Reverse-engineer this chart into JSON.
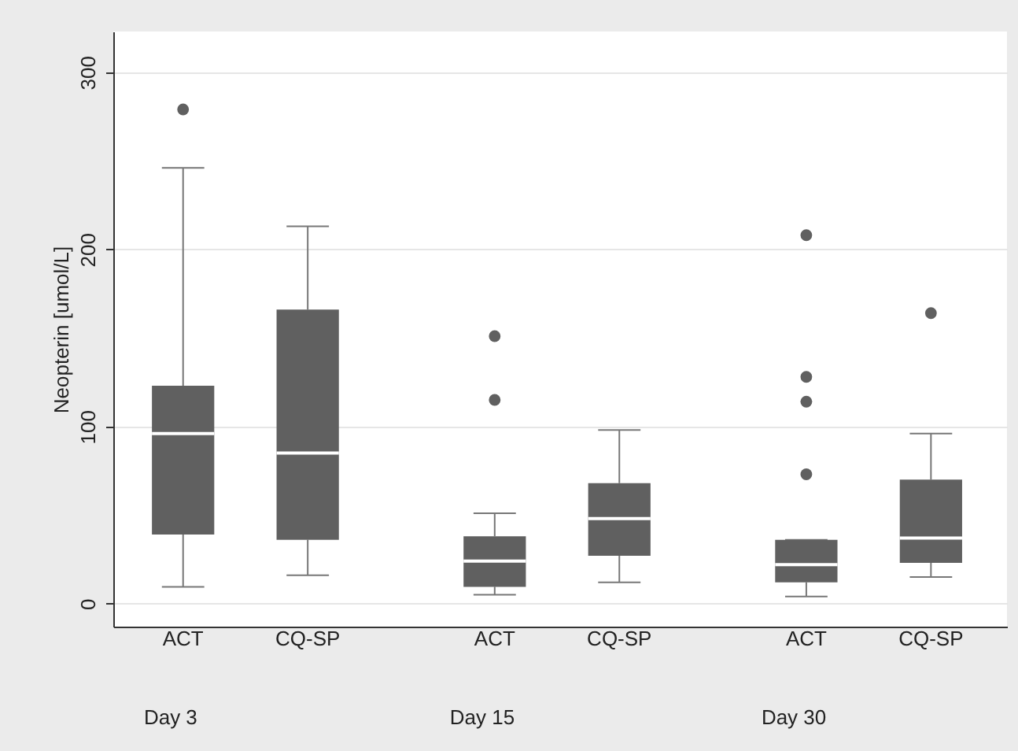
{
  "chart_data": {
    "type": "box",
    "ylabel": "Neopterin [umol/L]",
    "categories": [
      "ACT",
      "CQ-SP",
      "ACT",
      "CQ-SP",
      "ACT",
      "CQ-SP"
    ],
    "annotations": [
      "Day 3",
      "Day 15",
      "Day 30"
    ],
    "series": [
      {
        "color": "#606060",
        "boxes": [
          {
            "low": 9.5,
            "q1": 39,
            "median": 96,
            "q3": 123,
            "high": 246,
            "outliers": [
              279
            ]
          },
          {
            "low": 16,
            "q1": 36,
            "median": 85,
            "q3": 166,
            "high": 213
          },
          {
            "low": 5,
            "q1": 9.5,
            "median": 24,
            "q3": 38,
            "high": 51,
            "outliers": [
              151,
              115
            ]
          },
          {
            "low": 12,
            "q1": 27,
            "median": 48,
            "q3": 68,
            "high": 98
          },
          {
            "low": 4,
            "q1": 12,
            "median": 22,
            "q3": 36,
            "high": 36,
            "outliers": [
              208,
              128,
              114,
              73
            ]
          },
          {
            "low": 15,
            "q1": 23,
            "median": 37,
            "q3": 70,
            "high": 96,
            "outliers": [
              164
            ]
          }
        ]
      }
    ],
    "ylim": [
      -13,
      323
    ],
    "yticks": [
      0,
      100,
      200,
      300
    ],
    "grid": "y"
  }
}
